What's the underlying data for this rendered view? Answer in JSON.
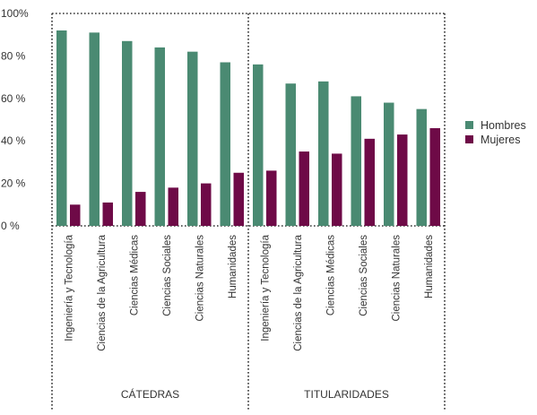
{
  "chart_data": {
    "type": "bar",
    "title": "",
    "xlabel": "",
    "ylabel": "",
    "ylim": [
      0,
      100
    ],
    "yticks": [
      {
        "value": 0,
        "label": "0 %"
      },
      {
        "value": 20,
        "label": "20 %"
      },
      {
        "value": 40,
        "label": "40 %"
      },
      {
        "value": 60,
        "label": "60 %"
      },
      {
        "value": 80,
        "label": "80 %"
      },
      {
        "value": 100,
        "label": "100%"
      }
    ],
    "grid": false,
    "legend_position": "right",
    "groups": [
      "CÁTEDRAS",
      "TITULARIDADES"
    ],
    "categories": [
      "Ingeniería y Tecnología",
      "Ciencias de la Agricultura",
      "Ciencias Médicas",
      "Ciencias Sociales",
      "Ciencias Naturales",
      "Humanidades",
      "Ingeniería y Tecnología",
      "Ciencias de la Agricultura",
      "Ciencias Médicas",
      "Ciencias Sociales",
      "Ciencias Naturales",
      "Humanidades"
    ],
    "series": [
      {
        "name": "Hombres",
        "color": "#4a8a72",
        "values": [
          92,
          91,
          87,
          84,
          82,
          77,
          76,
          67,
          68,
          61,
          58,
          55
        ]
      },
      {
        "name": "Mujeres",
        "color": "#6e0a47",
        "values": [
          10,
          11,
          16,
          18,
          20,
          25,
          26,
          35,
          34,
          41,
          43,
          46
        ]
      }
    ]
  }
}
